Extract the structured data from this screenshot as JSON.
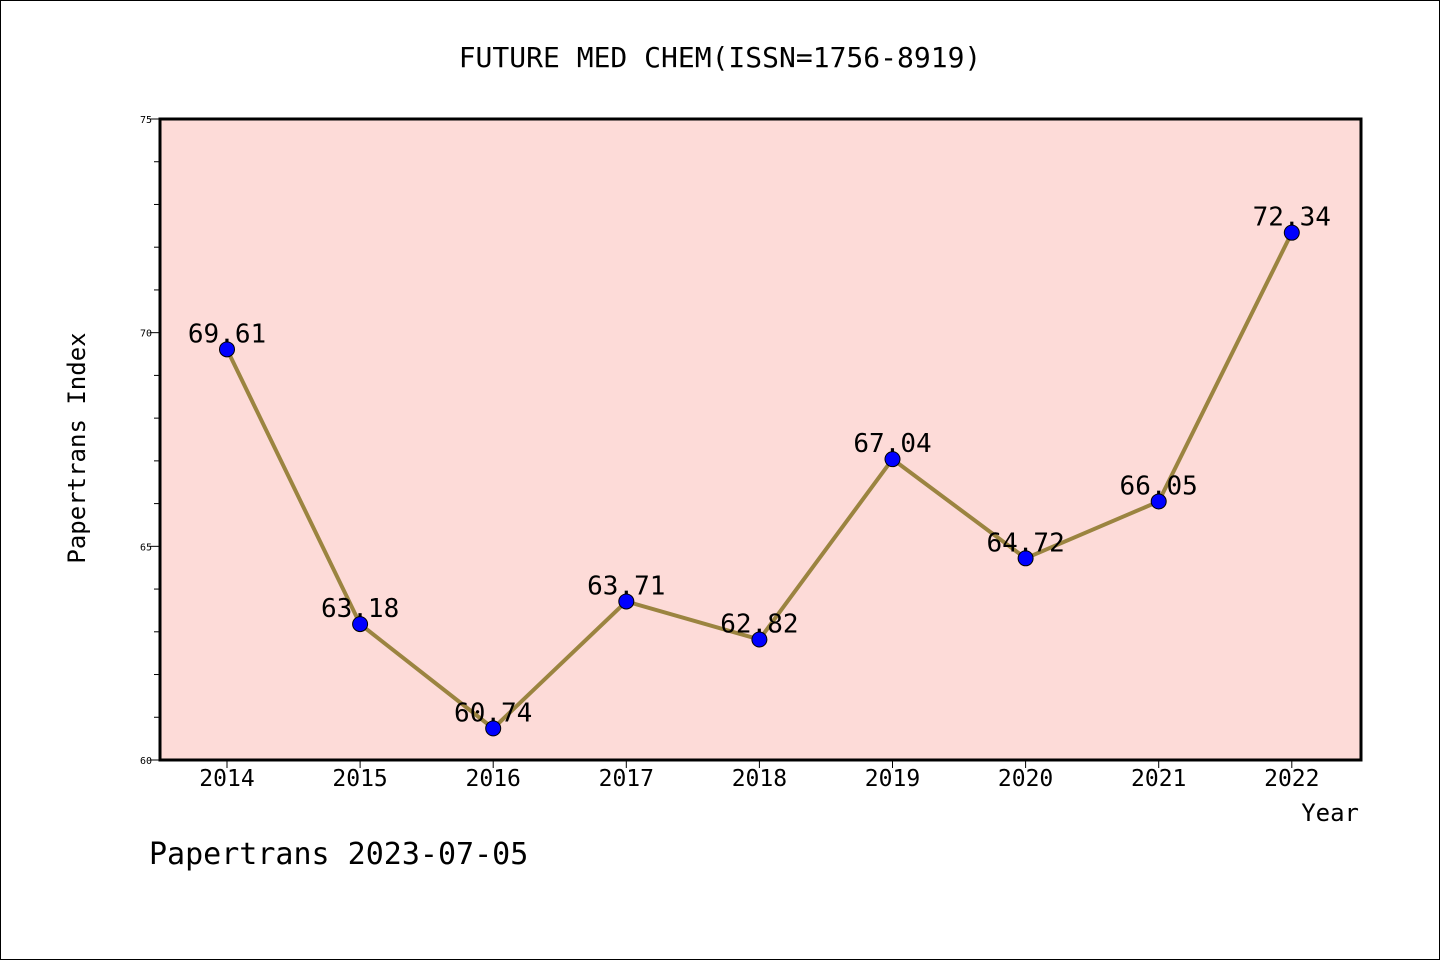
{
  "chart_data": {
    "type": "line",
    "title": "FUTURE MED CHEM(ISSN=1756-8919)",
    "xlabel": "Year",
    "ylabel": "Papertrans Index",
    "categories": [
      "2014",
      "2015",
      "2016",
      "2017",
      "2018",
      "2019",
      "2020",
      "2021",
      "2022"
    ],
    "values": [
      69.61,
      63.18,
      60.74,
      63.71,
      62.82,
      67.04,
      64.72,
      66.05,
      72.34
    ],
    "data_labels": [
      "69.61",
      "63.18",
      "60.74",
      "63.71",
      "62.82",
      "67.04",
      "64.72",
      "66.05",
      "72.34"
    ],
    "ylim": [
      60,
      75
    ],
    "yticks": [
      "60",
      "65",
      "70",
      "75"
    ],
    "grid": false,
    "colors": {
      "plot_background": "#fddbd8",
      "line": "#9b8440",
      "marker_fill": "#0000ff",
      "marker_edge": "#000000"
    }
  },
  "footer": "Papertrans 2023-07-05"
}
